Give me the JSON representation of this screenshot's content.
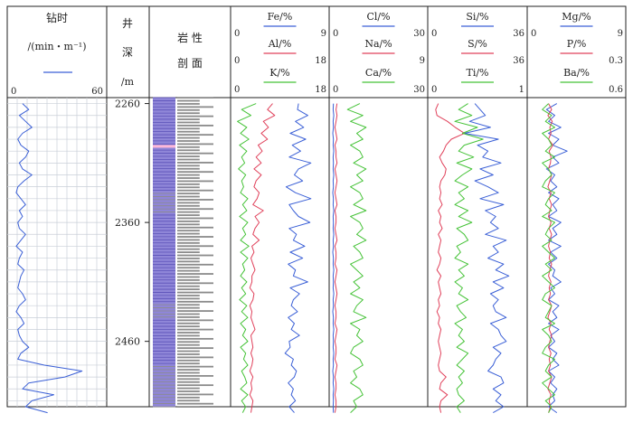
{
  "title": "",
  "colors": {
    "blue": "#3a5fd6",
    "red": "#e0405a",
    "green": "#44c236",
    "grid": "#c9cfd8",
    "lith_purple": "#8f86d8",
    "lith_gray": "#8b8b8b"
  },
  "headers": {
    "drill": {
      "title": "钻时",
      "unit": "/(min・m⁻¹)",
      "min": "0",
      "max": "60"
    },
    "depth": {
      "c1": "井",
      "c2": "深",
      "c3": "/m"
    },
    "lith": {
      "title_a": "岩 性",
      "title_b": "剖 面"
    },
    "col1": [
      {
        "label": "Fe/%",
        "min": "0",
        "max": "9",
        "color": "#3a5fd6"
      },
      {
        "label": "Al/%",
        "min": "0",
        "max": "18",
        "color": "#e0405a"
      },
      {
        "label": "K/%",
        "min": "0",
        "max": "18",
        "color": "#44c236"
      }
    ],
    "col2": [
      {
        "label": "Cl/%",
        "min": "0",
        "max": "30",
        "color": "#3a5fd6"
      },
      {
        "label": "Na/%",
        "min": "",
        "max": "9",
        "color": "#e0405a"
      },
      {
        "label": "Ca/%",
        "min": "0",
        "max": "30",
        "color": "#44c236"
      }
    ],
    "col3": [
      {
        "label": "Si/%",
        "min": "0",
        "max": "36",
        "color": "#3a5fd6"
      },
      {
        "label": "S/%",
        "min": "",
        "max": "36",
        "color": "#e0405a"
      },
      {
        "label": "Ti/%",
        "min": "0",
        "max": "1",
        "color": "#44c236"
      }
    ],
    "col4": [
      {
        "label": "Mg/%",
        "min": "0",
        "max": "9",
        "color": "#3a5fd6"
      },
      {
        "label": "P/%",
        "min": "",
        "max": "0.3",
        "color": "#e0405a"
      },
      {
        "label": "Ba/%",
        "min": "",
        "max": "0.6",
        "color": "#44c236"
      }
    ]
  },
  "depth_ticks": [
    "2260",
    "2360",
    "2460"
  ],
  "chart_data": {
    "type": "line",
    "y_axis": {
      "label": "井深/m",
      "ylim": [
        2255,
        2515
      ],
      "ticks": [
        2260,
        2360,
        2460
      ]
    },
    "depth_step": 5,
    "tracks": [
      {
        "name": "钻时",
        "unit": "min・m⁻¹",
        "xlim": [
          0,
          60
        ],
        "series": [
          {
            "name": "钻时",
            "color": "#3a5fd6",
            "values": [
              8,
              12,
              6,
              10,
              14,
              8,
              5,
              7,
              12,
              10,
              6,
              8,
              14,
              9,
              5,
              4,
              7,
              10,
              6,
              8,
              5,
              6,
              10,
              7,
              4,
              8,
              6,
              5,
              9,
              7,
              6,
              5,
              8,
              10,
              6,
              4,
              7,
              9,
              5,
              6,
              8,
              12,
              7,
              5,
              22,
              46,
              35,
              12,
              8,
              28,
              14,
              10,
              24
            ]
          }
        ]
      },
      {
        "name": "Fe/Al/K",
        "series": [
          {
            "name": "Fe",
            "unit": "%",
            "xlim": [
              0,
              9
            ],
            "color": "#3a5fd6",
            "values": [
              6.3,
              6.2,
              7.2,
              6.0,
              6.8,
              5.5,
              7.0,
              5.7,
              6.5,
              5.4,
              7.5,
              6.3,
              5.9,
              6.7,
              5.1,
              6.0,
              7.5,
              5.4,
              5.8,
              6.3,
              7.4,
              5.4,
              6.1,
              5.8,
              6.9,
              5.5,
              6.7,
              5.3,
              6.0,
              5.8,
              7.2,
              5.5,
              6.4,
              5.8,
              5.6,
              6.2,
              5.3,
              5.9,
              5.6,
              6.4,
              5.4,
              5.5,
              5.0,
              5.8,
              5.6,
              6.1,
              5.9,
              5.3,
              5.8,
              5.6,
              6.0,
              5.4,
              5.9
            ]
          },
          {
            "name": "Al",
            "unit": "%",
            "xlim": [
              0,
              18
            ],
            "color": "#e0405a",
            "values": [
              7.6,
              6.6,
              8.0,
              5.8,
              6.8,
              5.4,
              6.6,
              4.8,
              5.6,
              4.4,
              5.4,
              4.0,
              5.4,
              4.4,
              4.0,
              5.0,
              4.6,
              3.8,
              5.8,
              4.2,
              5.0,
              4.2,
              3.8,
              5.0,
              3.6,
              4.0,
              3.4,
              3.8,
              4.2,
              3.6,
              3.6,
              3.2,
              4.0,
              3.8,
              3.2,
              3.6,
              3.4,
              3.8,
              4.2,
              3.4,
              3.6,
              3.8,
              3.4,
              3.8,
              3.6,
              3.2,
              3.8,
              3.4,
              3.6,
              3.2,
              3.8,
              3.6,
              3.4
            ]
          },
          {
            "name": "K",
            "unit": "%",
            "xlim": [
              0,
              18
            ],
            "color": "#44c236",
            "values": [
              4.4,
              1.6,
              3.4,
              0.8,
              2.6,
              1.4,
              3.0,
              1.2,
              2.6,
              1.6,
              2.2,
              1.0,
              2.4,
              1.6,
              2.0,
              1.4,
              2.8,
              1.8,
              2.6,
              1.2,
              2.8,
              1.8,
              2.4,
              1.4,
              3.0,
              1.4,
              2.8,
              1.8,
              2.2,
              1.4,
              2.6,
              1.6,
              2.4,
              1.2,
              2.6,
              1.6,
              2.8,
              1.4,
              2.4,
              1.8,
              2.8,
              1.4,
              2.4,
              2.0,
              2.8,
              1.6,
              2.2,
              2.6,
              1.4,
              2.8,
              1.6,
              2.4,
              1.8
            ]
          }
        ]
      },
      {
        "name": "Cl/Na/Ca",
        "series": [
          {
            "name": "Cl",
            "unit": "%",
            "xlim": [
              0,
              30
            ],
            "color": "#3a5fd6",
            "values": [
              0.5,
              0.4,
              0.6,
              0.4,
              0.5,
              0.3,
              0.5,
              0.4,
              0.6,
              0.4,
              0.5,
              0.4,
              0.6,
              0.4,
              0.5,
              0.3,
              0.5,
              0.4,
              0.6,
              0.4,
              0.5,
              0.4,
              0.6,
              0.4,
              0.5,
              0.3,
              0.5,
              0.4,
              0.6,
              0.4,
              0.5,
              0.4,
              0.6,
              0.4,
              0.5,
              0.3,
              0.5,
              0.4,
              0.6,
              0.4,
              0.5,
              0.4,
              0.6,
              0.4,
              0.5,
              0.3,
              0.5,
              0.4,
              0.6,
              0.4,
              0.5,
              0.4,
              0.5
            ]
          },
          {
            "name": "Na",
            "unit": "%",
            "xlim": [
              0,
              9
            ],
            "color": "#e0405a",
            "values": [
              0.5,
              0.4,
              0.5,
              0.4,
              0.3,
              0.4,
              0.5,
              0.3,
              0.4,
              0.4,
              0.5,
              0.3,
              0.4,
              0.5,
              0.4,
              0.3,
              0.4,
              0.5,
              0.3,
              0.4,
              0.4,
              0.3,
              0.4,
              0.5,
              0.3,
              0.4,
              0.4,
              0.3,
              0.5,
              0.4,
              0.3,
              0.4,
              0.5,
              0.4,
              0.3,
              0.4,
              0.4,
              0.3,
              0.5,
              0.4,
              0.3,
              0.4,
              0.4,
              0.3,
              0.5,
              0.4,
              0.3,
              0.4,
              0.4,
              0.3,
              0.4,
              0.4,
              0.3
            ]
          },
          {
            "name": "Ca",
            "unit": "%",
            "xlim": [
              0,
              30
            ],
            "color": "#44c236",
            "values": [
              9,
              5,
              10,
              6,
              11,
              8,
              10,
              6,
              9,
              10,
              7,
              11,
              8,
              10,
              6,
              9,
              10,
              7,
              11,
              6,
              9,
              10,
              8,
              11,
              7,
              9,
              10,
              6,
              8,
              10,
              7,
              9,
              6,
              10,
              8,
              7,
              11,
              6,
              9,
              8,
              10,
              7,
              6,
              9,
              10,
              7,
              8,
              6,
              9,
              10,
              7,
              8,
              6
            ]
          }
        ]
      },
      {
        "name": "Si/S/Ti",
        "series": [
          {
            "name": "Si",
            "unit": "%",
            "xlim": [
              0,
              36
            ],
            "color": "#3a5fd6",
            "values": [
              17,
              19,
              21,
              15,
              23,
              13,
              26,
              18,
              22,
              20,
              27,
              19,
              24,
              17,
              22,
              26,
              19,
              28,
              21,
              25,
              23,
              26,
              21,
              29,
              24,
              26,
              22,
              28,
              25,
              30,
              24,
              28,
              23,
              26,
              24,
              25,
              29,
              23,
              26,
              27,
              29,
              24,
              27,
              25,
              24,
              22,
              27,
              28,
              24,
              27,
              25,
              28,
              24
            ]
          },
          {
            "name": "S",
            "unit": "%",
            "xlim": [
              0,
              36
            ],
            "color": "#e0405a",
            "values": [
              3.0,
              2.0,
              2.5,
              6.5,
              9.5,
              13.0,
              8.0,
              6.0,
              5.0,
              3.5,
              4.5,
              6.0,
              5.5,
              4.0,
              3.5,
              4.0,
              3.5,
              4.5,
              3.0,
              4.0,
              3.5,
              4.5,
              3.0,
              4.0,
              3.5,
              3.0,
              4.0,
              3.5,
              2.5,
              4.0,
              3.0,
              3.5,
              4.0,
              3.0,
              3.5,
              2.5,
              3.5,
              3.0,
              4.0,
              3.5,
              3.0,
              3.5,
              4.0,
              3.5,
              3.0,
              3.5,
              6.0,
              4.0,
              3.5,
              6.5,
              4.0,
              3.5,
              4.0
            ]
          },
          {
            "name": "Ti",
            "unit": "%",
            "xlim": [
              0,
              1
            ],
            "color": "#44c236",
            "values": [
              0.4,
              0.3,
              0.44,
              0.26,
              0.5,
              0.34,
              0.56,
              0.36,
              0.3,
              0.46,
              0.28,
              0.44,
              0.34,
              0.26,
              0.4,
              0.3,
              0.36,
              0.26,
              0.4,
              0.3,
              0.44,
              0.28,
              0.36,
              0.4,
              0.28,
              0.32,
              0.26,
              0.4,
              0.3,
              0.36,
              0.26,
              0.34,
              0.3,
              0.4,
              0.28,
              0.32,
              0.38,
              0.26,
              0.34,
              0.3,
              0.36,
              0.28,
              0.4,
              0.34,
              0.28,
              0.36,
              0.3,
              0.34,
              0.28,
              0.3,
              0.36,
              0.28,
              0.32
            ]
          }
        ]
      },
      {
        "name": "Mg/P/Ba",
        "series": [
          {
            "name": "Mg",
            "unit": "%",
            "xlim": [
              0,
              9
            ],
            "color": "#3a5fd6",
            "values": [
              2.6,
              1.6,
              2.4,
              1.8,
              3.0,
              1.8,
              2.8,
              2.2,
              3.6,
              2.2,
              2.8,
              1.6,
              2.4,
              2.0,
              2.6,
              1.8,
              2.8,
              2.2,
              2.6,
              1.8,
              3.0,
              2.2,
              2.6,
              1.8,
              3.0,
              2.0,
              2.6,
              1.8,
              2.4,
              2.2,
              3.0,
              2.0,
              2.4,
              1.8,
              2.8,
              2.2,
              2.6,
              1.8,
              2.8,
              2.0,
              2.4,
              1.8,
              2.6,
              2.2,
              2.8,
              1.8,
              2.4,
              2.0,
              2.6,
              2.2,
              2.4,
              1.8,
              2.6
            ]
          },
          {
            "name": "P",
            "unit": "%",
            "xlim": [
              0,
              0.3
            ],
            "color": "#e0405a",
            "values": [
              0.06,
              0.07,
              0.058,
              0.072,
              0.064,
              0.068,
              0.06,
              0.074,
              0.062,
              0.068,
              0.066,
              0.06,
              0.07,
              0.064,
              0.058,
              0.068,
              0.062,
              0.07,
              0.064,
              0.06,
              0.068,
              0.062,
              0.07,
              0.064,
              0.06,
              0.066,
              0.062,
              0.07,
              0.064,
              0.06,
              0.068,
              0.062,
              0.066,
              0.06,
              0.07,
              0.064,
              0.058,
              0.068,
              0.062,
              0.07,
              0.064,
              0.06,
              0.068,
              0.062,
              0.066,
              0.06,
              0.07,
              0.064,
              0.058,
              0.068,
              0.062,
              0.066,
              0.06
            ]
          },
          {
            "name": "Ba",
            "unit": "%",
            "xlim": [
              0,
              0.6
            ],
            "color": "#44c236",
            "values": [
              0.12,
              0.08,
              0.14,
              0.1,
              0.16,
              0.08,
              0.12,
              0.14,
              0.1,
              0.16,
              0.08,
              0.12,
              0.14,
              0.1,
              0.08,
              0.16,
              0.12,
              0.1,
              0.14,
              0.08,
              0.16,
              0.12,
              0.1,
              0.14,
              0.08,
              0.12,
              0.16,
              0.1,
              0.14,
              0.08,
              0.12,
              0.16,
              0.1,
              0.08,
              0.14,
              0.12,
              0.1,
              0.16,
              0.08,
              0.12,
              0.14,
              0.1,
              0.08,
              0.16,
              0.12,
              0.1,
              0.14,
              0.08,
              0.12,
              0.16,
              0.1,
              0.14,
              0.12
            ]
          }
        ]
      }
    ]
  }
}
